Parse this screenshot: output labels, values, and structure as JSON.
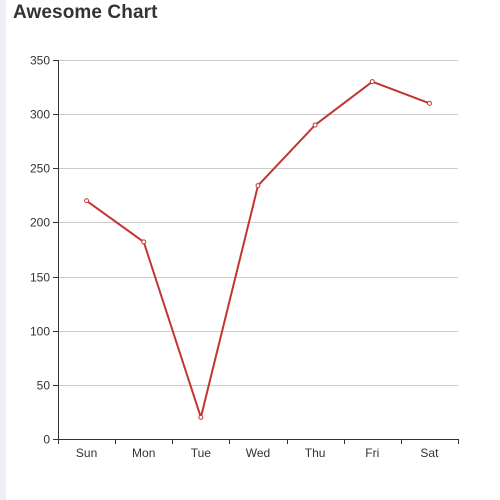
{
  "page": {
    "title": "Awesome Chart"
  },
  "chart_data": {
    "type": "line",
    "title": "Awesome Chart",
    "categories": [
      "Sun",
      "Mon",
      "Tue",
      "Wed",
      "Thu",
      "Fri",
      "Sat"
    ],
    "series": [
      {
        "values": [
          220,
          182,
          20,
          234,
          290,
          330,
          310
        ],
        "color": "#c23531"
      }
    ],
    "ylim": [
      0,
      350
    ],
    "yticks": [
      0,
      50,
      100,
      150,
      200,
      250,
      300,
      350
    ],
    "xlabel": "",
    "ylabel": "",
    "grid": "horizontal",
    "legend": "none"
  }
}
